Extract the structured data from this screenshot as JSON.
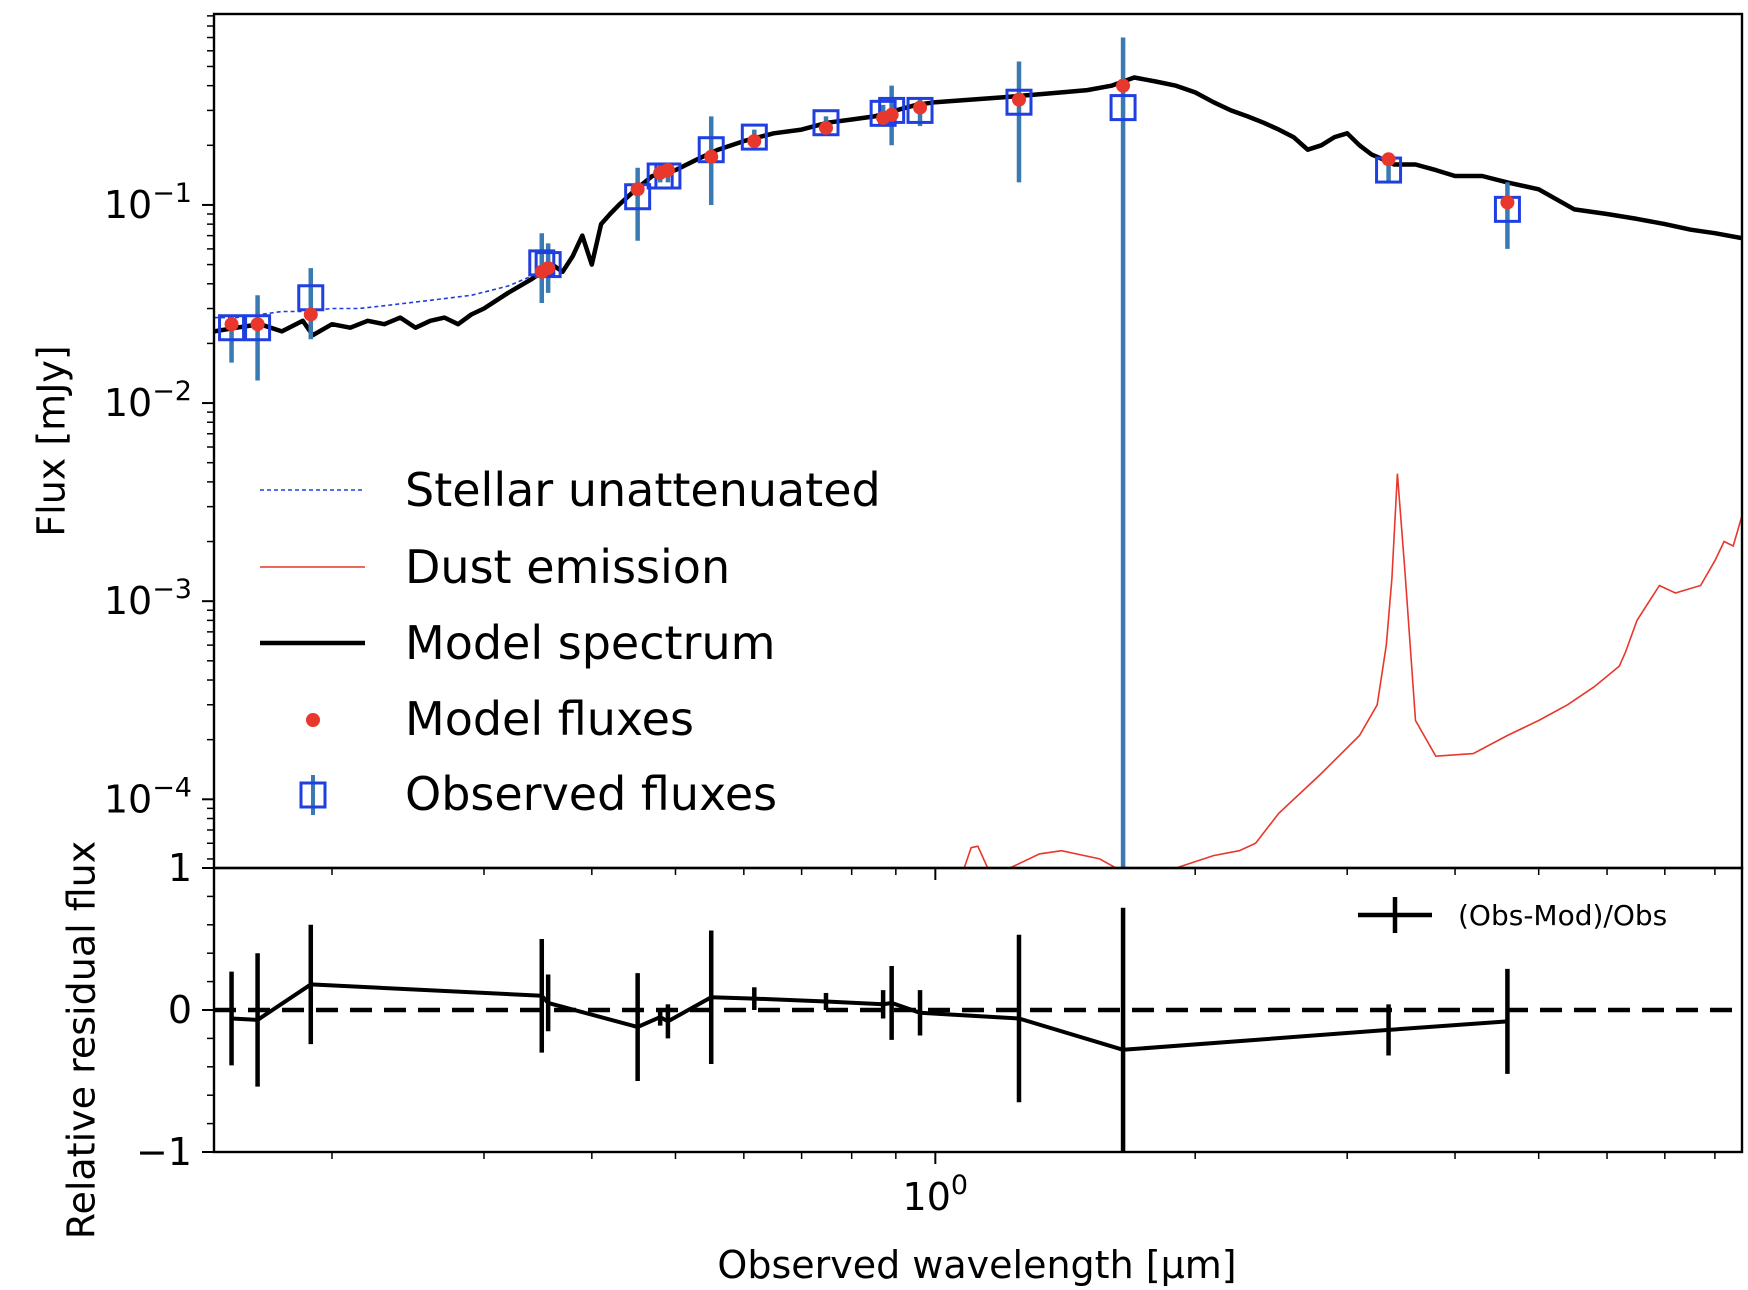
{
  "chart_data": [
    {
      "panel": "top",
      "type": "line",
      "ylabel": "Flux [mJy]",
      "xscale": "log",
      "yscale": "log",
      "xlim": [
        0.146,
        8.6
      ],
      "ylim": [
        4.5e-05,
        0.92
      ],
      "yticks": [
        {
          "value": 0.1,
          "base": "10",
          "exp": "−1"
        },
        {
          "value": 0.01,
          "base": "10",
          "exp": "−2"
        },
        {
          "value": 0.001,
          "base": "10",
          "exp": "−3"
        },
        {
          "value": 0.0001,
          "base": "10",
          "exp": "−4"
        }
      ],
      "legend_position": "lower-left",
      "series": [
        {
          "name": "Stellar unattenuated",
          "style": "dashed",
          "color": "#1f3fe0",
          "x": [
            0.146,
            0.155,
            0.165,
            0.175,
            0.185,
            0.2,
            0.215,
            0.23,
            0.26,
            0.29,
            0.32,
            0.35
          ],
          "y": [
            0.027,
            0.027,
            0.028,
            0.029,
            0.029,
            0.03,
            0.03,
            0.031,
            0.033,
            0.035,
            0.039,
            0.046
          ]
        },
        {
          "name": "Dust emission",
          "style": "solid",
          "color": "#e8372c",
          "x": [
            1.08,
            1.1,
            1.12,
            1.15,
            1.22,
            1.32,
            1.4,
            1.55,
            1.7,
            1.9,
            2.1,
            2.25,
            2.35,
            2.5,
            2.8,
            3.1,
            3.25,
            3.33,
            3.38,
            3.43,
            3.5,
            3.6,
            3.8,
            4.2,
            4.6,
            5.0,
            5.4,
            5.8,
            6.2,
            6.3,
            6.5,
            6.9,
            7.2,
            7.7,
            8.0,
            8.2,
            8.4,
            8.6
          ],
          "y": [
            4.5e-05,
            5.7e-05,
            5.8e-05,
            4.5e-05,
            4.5e-05,
            5.3e-05,
            5.5e-05,
            5e-05,
            4e-05,
            4.5e-05,
            5.2e-05,
            5.5e-05,
            6e-05,
            8.5e-05,
            0.000135,
            0.00021,
            0.0003,
            0.0006,
            0.0013,
            0.0044,
            0.0014,
            0.00025,
            0.000165,
            0.00017,
            0.00021,
            0.00025,
            0.0003,
            0.00037,
            0.00047,
            0.00055,
            0.0008,
            0.0012,
            0.0011,
            0.0012,
            0.0016,
            0.002,
            0.0019,
            0.0027
          ]
        },
        {
          "name": "Model spectrum",
          "style": "solid",
          "color": "#000000",
          "x": [
            0.146,
            0.155,
            0.165,
            0.175,
            0.185,
            0.19,
            0.2,
            0.21,
            0.22,
            0.23,
            0.24,
            0.25,
            0.26,
            0.27,
            0.28,
            0.29,
            0.3,
            0.32,
            0.34,
            0.36,
            0.37,
            0.38,
            0.39,
            0.4,
            0.41,
            0.42,
            0.43,
            0.45,
            0.47,
            0.5,
            0.53,
            0.56,
            0.6,
            0.65,
            0.7,
            0.75,
            0.8,
            0.85,
            0.9,
            0.95,
            1.0,
            1.1,
            1.2,
            1.3,
            1.4,
            1.5,
            1.6,
            1.65,
            1.7,
            1.8,
            1.9,
            2.0,
            2.1,
            2.2,
            2.3,
            2.4,
            2.5,
            2.6,
            2.7,
            2.8,
            2.9,
            3.0,
            3.1,
            3.2,
            3.3,
            3.4,
            3.6,
            3.8,
            4.0,
            4.3,
            4.6,
            5.0,
            5.5,
            6.0,
            6.5,
            7.0,
            7.5,
            8.0,
            8.6
          ],
          "y": [
            0.023,
            0.024,
            0.025,
            0.023,
            0.026,
            0.022,
            0.025,
            0.024,
            0.026,
            0.025,
            0.027,
            0.024,
            0.026,
            0.027,
            0.025,
            0.028,
            0.03,
            0.036,
            0.042,
            0.05,
            0.046,
            0.055,
            0.07,
            0.05,
            0.08,
            0.09,
            0.1,
            0.12,
            0.14,
            0.15,
            0.17,
            0.19,
            0.21,
            0.23,
            0.24,
            0.26,
            0.27,
            0.28,
            0.3,
            0.32,
            0.33,
            0.34,
            0.35,
            0.36,
            0.37,
            0.38,
            0.4,
            0.42,
            0.44,
            0.42,
            0.4,
            0.37,
            0.33,
            0.3,
            0.28,
            0.26,
            0.24,
            0.22,
            0.19,
            0.2,
            0.22,
            0.23,
            0.2,
            0.18,
            0.17,
            0.16,
            0.16,
            0.15,
            0.14,
            0.14,
            0.13,
            0.12,
            0.095,
            0.09,
            0.085,
            0.08,
            0.075,
            0.072,
            0.068
          ]
        },
        {
          "name": "Model fluxes",
          "style": "markers",
          "color": "#e8372c",
          "x": [
            0.153,
            0.164,
            0.189,
            0.35,
            0.356,
            0.452,
            0.48,
            0.49,
            0.55,
            0.617,
            0.747,
            0.87,
            0.89,
            0.96,
            1.25,
            1.65,
            3.35,
            4.6
          ],
          "y": [
            0.025,
            0.025,
            0.028,
            0.046,
            0.048,
            0.12,
            0.145,
            0.15,
            0.175,
            0.21,
            0.245,
            0.275,
            0.285,
            0.31,
            0.34,
            0.4,
            0.17,
            0.103
          ]
        },
        {
          "name": "Observed fluxes",
          "style": "errorbar-squares",
          "color": "#1f3fe0",
          "errcolor": "#3a7ab2",
          "x": [
            0.153,
            0.164,
            0.189,
            0.35,
            0.356,
            0.452,
            0.48,
            0.49,
            0.55,
            0.617,
            0.747,
            0.87,
            0.89,
            0.96,
            1.25,
            1.65,
            3.35,
            4.6
          ],
          "y": [
            0.024,
            0.024,
            0.034,
            0.051,
            0.05,
            0.11,
            0.14,
            0.14,
            0.19,
            0.22,
            0.26,
            0.29,
            0.3,
            0.3,
            0.33,
            0.31,
            0.15,
            0.095
          ],
          "ylo": [
            0.016,
            0.013,
            0.021,
            0.032,
            0.036,
            0.066,
            0.13,
            0.13,
            0.1,
            0.2,
            0.24,
            0.26,
            0.2,
            0.25,
            0.13,
            1e-05,
            0.13,
            0.06
          ],
          "yhi": [
            0.028,
            0.035,
            0.048,
            0.072,
            0.064,
            0.154,
            0.16,
            0.16,
            0.28,
            0.24,
            0.28,
            0.32,
            0.4,
            0.35,
            0.53,
            0.7,
            0.17,
            0.13
          ]
        }
      ]
    },
    {
      "panel": "bottom",
      "type": "line",
      "xlabel": "Observed wavelength [μm]",
      "ylabel": "Relative residual flux",
      "xscale": "log",
      "xlim": [
        0.146,
        8.6
      ],
      "ylim": [
        -1,
        1
      ],
      "yticks": [
        1,
        0,
        -1
      ],
      "ytick_labels": [
        "1",
        "0",
        "−1"
      ],
      "xticks": [
        {
          "value": 1.0,
          "base": "10",
          "exp": "0"
        }
      ],
      "reference_line": 0,
      "legend_position": "top-right",
      "series": [
        {
          "name": "(Obs-Mod)/Obs",
          "color": "#000000",
          "x": [
            0.153,
            0.164,
            0.189,
            0.35,
            0.356,
            0.452,
            0.48,
            0.49,
            0.55,
            0.617,
            0.747,
            0.87,
            0.89,
            0.96,
            1.25,
            1.65,
            3.35,
            4.6
          ],
          "y": [
            -0.06,
            -0.07,
            0.18,
            0.1,
            0.05,
            -0.12,
            -0.05,
            -0.08,
            0.09,
            0.08,
            0.06,
            0.04,
            0.05,
            -0.02,
            -0.06,
            -0.28,
            -0.14,
            -0.08
          ],
          "err": [
            0.33,
            0.47,
            0.42,
            0.4,
            0.2,
            0.38,
            0.06,
            0.12,
            0.47,
            0.08,
            0.06,
            0.1,
            0.26,
            0.16,
            0.59,
            1.0,
            0.18,
            0.37
          ]
        }
      ]
    }
  ]
}
